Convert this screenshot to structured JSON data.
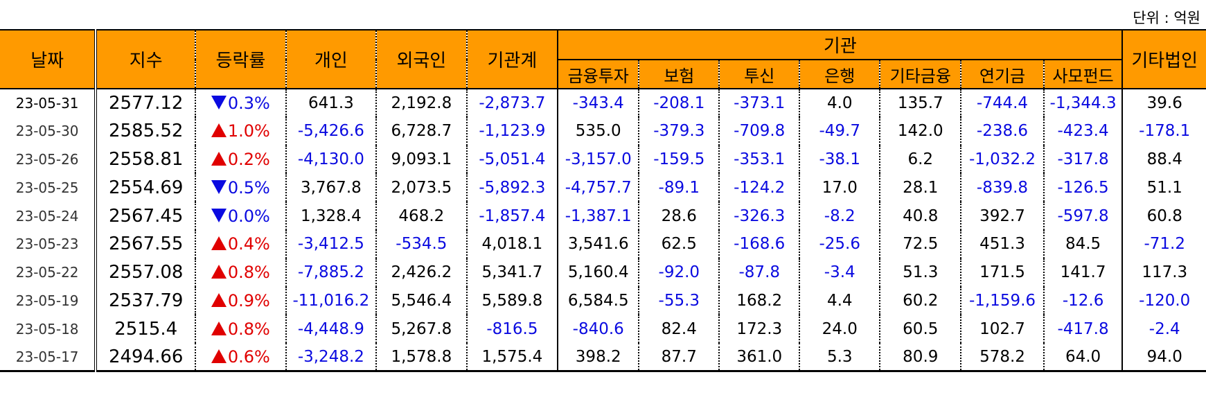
{
  "unit_label": "단위 : 억원",
  "headers": {
    "date": "날짜",
    "index": "지수",
    "change_rate": "등락률",
    "individual": "개인",
    "foreigner": "외국인",
    "institution_total": "기관계",
    "institution_group": "기관",
    "financial_investment": "금융투자",
    "insurance": "보험",
    "investment_trust": "투신",
    "bank": "은행",
    "other_finance": "기타금융",
    "pension": "연기금",
    "private_fund": "사모펀드",
    "other_corp": "기타법인"
  },
  "colors": {
    "header_bg": "#ff9a00",
    "negative": "#0a0ae0",
    "up_arrow": "#e00000",
    "down_arrow": "#0a0ae0"
  },
  "rows": [
    {
      "date": "23-05-31",
      "index": "2577.12",
      "dir": "down",
      "pct": "0.3%",
      "individual": "641.3",
      "foreigner": "2,192.8",
      "inst_total": "-2,873.7",
      "fin_inv": "-343.4",
      "insurance": "-208.1",
      "inv_trust": "-373.1",
      "bank": "4.0",
      "other_fin": "135.7",
      "pension": "-744.4",
      "private_fund": "-1,344.3",
      "other_corp": "39.6"
    },
    {
      "date": "23-05-30",
      "index": "2585.52",
      "dir": "up",
      "pct": "1.0%",
      "individual": "-5,426.6",
      "foreigner": "6,728.7",
      "inst_total": "-1,123.9",
      "fin_inv": "535.0",
      "insurance": "-379.3",
      "inv_trust": "-709.8",
      "bank": "-49.7",
      "other_fin": "142.0",
      "pension": "-238.6",
      "private_fund": "-423.4",
      "other_corp": "-178.1"
    },
    {
      "date": "23-05-26",
      "index": "2558.81",
      "dir": "up",
      "pct": "0.2%",
      "individual": "-4,130.0",
      "foreigner": "9,093.1",
      "inst_total": "-5,051.4",
      "fin_inv": "-3,157.0",
      "insurance": "-159.5",
      "inv_trust": "-353.1",
      "bank": "-38.1",
      "other_fin": "6.2",
      "pension": "-1,032.2",
      "private_fund": "-317.8",
      "other_corp": "88.4"
    },
    {
      "date": "23-05-25",
      "index": "2554.69",
      "dir": "down",
      "pct": "0.5%",
      "individual": "3,767.8",
      "foreigner": "2,073.5",
      "inst_total": "-5,892.3",
      "fin_inv": "-4,757.7",
      "insurance": "-89.1",
      "inv_trust": "-124.2",
      "bank": "17.0",
      "other_fin": "28.1",
      "pension": "-839.8",
      "private_fund": "-126.5",
      "other_corp": "51.1"
    },
    {
      "date": "23-05-24",
      "index": "2567.45",
      "dir": "down",
      "pct": "0.0%",
      "individual": "1,328.4",
      "foreigner": "468.2",
      "inst_total": "-1,857.4",
      "fin_inv": "-1,387.1",
      "insurance": "28.6",
      "inv_trust": "-326.3",
      "bank": "-8.2",
      "other_fin": "40.8",
      "pension": "392.7",
      "private_fund": "-597.8",
      "other_corp": "60.8"
    },
    {
      "date": "23-05-23",
      "index": "2567.55",
      "dir": "up",
      "pct": "0.4%",
      "individual": "-3,412.5",
      "foreigner": "-534.5",
      "inst_total": "4,018.1",
      "fin_inv": "3,541.6",
      "insurance": "62.5",
      "inv_trust": "-168.6",
      "bank": "-25.6",
      "other_fin": "72.5",
      "pension": "451.3",
      "private_fund": "84.5",
      "other_corp": "-71.2"
    },
    {
      "date": "23-05-22",
      "index": "2557.08",
      "dir": "up",
      "pct": "0.8%",
      "individual": "-7,885.2",
      "foreigner": "2,426.2",
      "inst_total": "5,341.7",
      "fin_inv": "5,160.4",
      "insurance": "-92.0",
      "inv_trust": "-87.8",
      "bank": "-3.4",
      "other_fin": "51.3",
      "pension": "171.5",
      "private_fund": "141.7",
      "other_corp": "117.3"
    },
    {
      "date": "23-05-19",
      "index": "2537.79",
      "dir": "up",
      "pct": "0.9%",
      "individual": "-11,016.2",
      "foreigner": "5,546.4",
      "inst_total": "5,589.8",
      "fin_inv": "6,584.5",
      "insurance": "-55.3",
      "inv_trust": "168.2",
      "bank": "4.4",
      "other_fin": "60.2",
      "pension": "-1,159.6",
      "private_fund": "-12.6",
      "other_corp": "-120.0"
    },
    {
      "date": "23-05-18",
      "index": "2515.4",
      "dir": "up",
      "pct": "0.8%",
      "individual": "-4,448.9",
      "foreigner": "5,267.8",
      "inst_total": "-816.5",
      "fin_inv": "-840.6",
      "insurance": "82.4",
      "inv_trust": "172.3",
      "bank": "24.0",
      "other_fin": "60.5",
      "pension": "102.7",
      "private_fund": "-417.8",
      "other_corp": "-2.4"
    },
    {
      "date": "23-05-17",
      "index": "2494.66",
      "dir": "up",
      "pct": "0.6%",
      "individual": "-3,248.2",
      "foreigner": "1,578.8",
      "inst_total": "1,575.4",
      "fin_inv": "398.2",
      "insurance": "87.7",
      "inv_trust": "361.0",
      "bank": "5.3",
      "other_fin": "80.9",
      "pension": "578.2",
      "private_fund": "64.0",
      "other_corp": "94.0"
    }
  ]
}
